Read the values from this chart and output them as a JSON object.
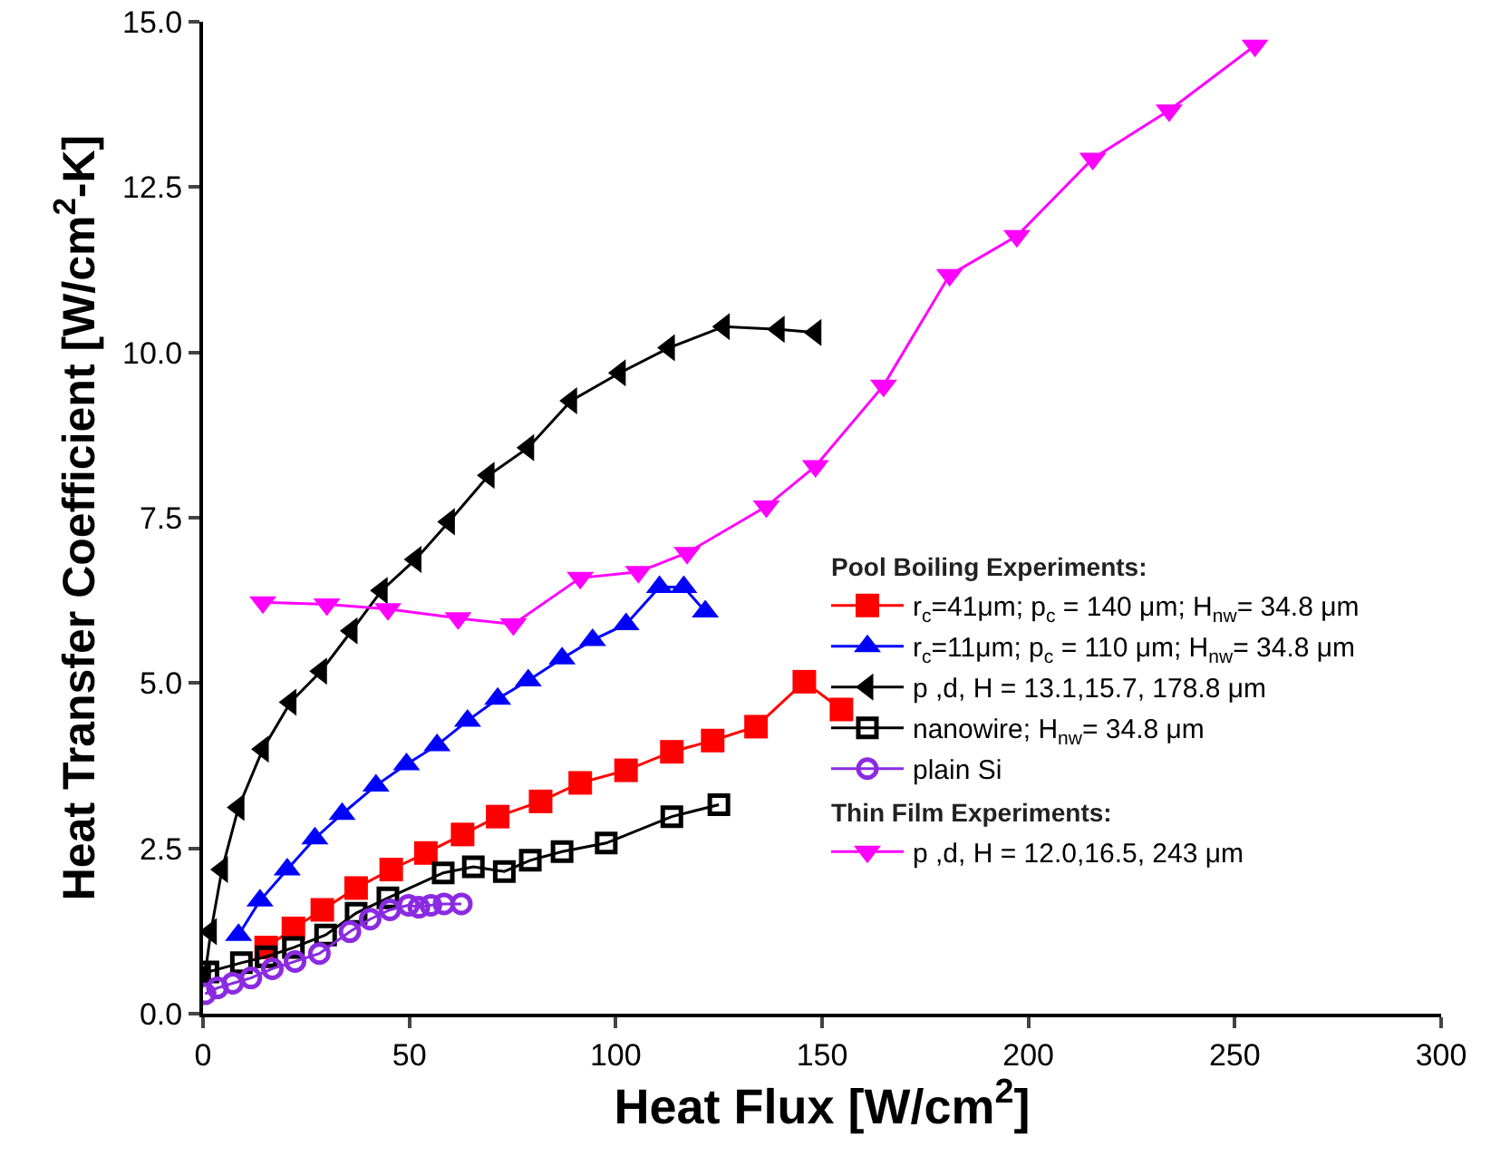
{
  "chart_data": {
    "type": "line",
    "xlabel": "Heat Flux [W/cm$^{2}$]",
    "ylabel": "Heat Transfer Coefficient [W/cm$^{2}$-K]",
    "annotations": [
      "Pool Boiling Experiments:",
      "Thin Film Experiments:"
    ],
    "xlim": [
      0,
      300
    ],
    "xticks": [
      0,
      50,
      100,
      150,
      200,
      250,
      300
    ],
    "ylim": [
      0,
      15
    ],
    "yticks": [
      {
        "value": 0,
        "label": "0.0"
      },
      {
        "value": 2.5,
        "label": "2.5"
      },
      {
        "value": 5,
        "label": "5.0"
      },
      {
        "value": 7.5,
        "label": "7.5"
      },
      {
        "value": 10,
        "label": "10.0"
      },
      {
        "value": 12.5,
        "label": "12.5"
      },
      {
        "value": 15,
        "label": "15.0"
      }
    ],
    "grid": false,
    "legend": "right",
    "line_style": "solid",
    "series": [
      {
        "name": "r$_{c}$=41μm; p$_{c}$ = 140 μm; H$_{nw}$= 34.8 μm",
        "color": "#ff0000",
        "marker": "square",
        "x": [
          15.3,
          21.9,
          28.9,
          37.1,
          45.6,
          54,
          62.9,
          71.4,
          81.8,
          91.4,
          102.5,
          113.6,
          123.5,
          134,
          145.7,
          154.7
        ],
        "values": [
          1.0,
          1.29,
          1.57,
          1.9,
          2.18,
          2.43,
          2.71,
          2.98,
          3.21,
          3.49,
          3.68,
          3.96,
          4.13,
          4.34,
          5.02,
          4.6
        ]
      },
      {
        "name": "r$_{c}$=11μm; p$_{c}$ = 110 μm; H$_{nw}$= 34.8 μm",
        "color": "#0000ff",
        "marker": "triangle-up",
        "x": [
          8.6,
          13.8,
          20.4,
          27.1,
          33.7,
          41.9,
          49.3,
          56.7,
          64.1,
          71.4,
          78.8,
          87,
          94.4,
          102.5,
          110.6,
          116.5,
          121.7
        ],
        "values": [
          1.19,
          1.71,
          2.18,
          2.65,
          3.02,
          3.45,
          3.77,
          4.06,
          4.43,
          4.76,
          5.04,
          5.37,
          5.65,
          5.89,
          6.45,
          6.45,
          6.08
        ]
      },
      {
        "name": "p ,d, H = 13.1,15.7, 178.8 μm",
        "color": "#000000",
        "marker": "triangle-left",
        "x": [
          0.5,
          1.9,
          4.6,
          8.6,
          14.5,
          21.2,
          28.6,
          36,
          43.3,
          51.5,
          59.6,
          69.2,
          78.8,
          89.2,
          101,
          112.9,
          126.2,
          139.5,
          148.4
        ],
        "values": [
          0.6,
          1.24,
          2.18,
          3.12,
          4.0,
          4.71,
          5.18,
          5.79,
          6.4,
          6.87,
          7.44,
          8.14,
          8.56,
          9.27,
          9.69,
          10.07,
          10.39,
          10.35,
          10.3
        ]
      },
      {
        "name": "nanowire; H$_{nw}$= 34.8 μm",
        "color": "#000000",
        "marker": "square-open",
        "x": [
          1.2,
          9.3,
          15.3,
          21.9,
          29.7,
          37.1,
          44.8,
          58.2,
          65.5,
          73,
          79.3,
          87,
          97.7,
          113.6,
          125
        ],
        "values": [
          0.63,
          0.77,
          0.86,
          1.0,
          1.19,
          1.52,
          1.75,
          2.13,
          2.22,
          2.15,
          2.32,
          2.45,
          2.58,
          2.98,
          3.16
        ]
      },
      {
        "name": "plain Si",
        "color": "#8a2be2",
        "marker": "circle-open",
        "x": [
          0.5,
          3.5,
          7.2,
          11.6,
          16.8,
          22.3,
          28.2,
          35.6,
          40.5,
          45.3,
          49.8,
          52.3,
          55.2,
          58.4,
          62.6
        ],
        "values": [
          0.3,
          0.39,
          0.46,
          0.54,
          0.68,
          0.79,
          0.91,
          1.24,
          1.43,
          1.57,
          1.64,
          1.61,
          1.64,
          1.66,
          1.66
        ]
      },
      {
        "name": "p ,d, H = 12.0,16.5, 243 μm",
        "color": "#ff00ff",
        "marker": "triangle-down",
        "x": [
          14.5,
          30,
          44.8,
          61.8,
          75.2,
          91.4,
          105.5,
          117.3,
          136.5,
          148.4,
          164.9,
          180.9,
          197.2,
          215.6,
          234.1,
          254.9
        ],
        "values": [
          6.22,
          6.19,
          6.12,
          5.98,
          5.89,
          6.59,
          6.68,
          6.97,
          7.67,
          8.28,
          9.5,
          11.17,
          11.76,
          12.93,
          13.66,
          14.64
        ]
      }
    ]
  }
}
